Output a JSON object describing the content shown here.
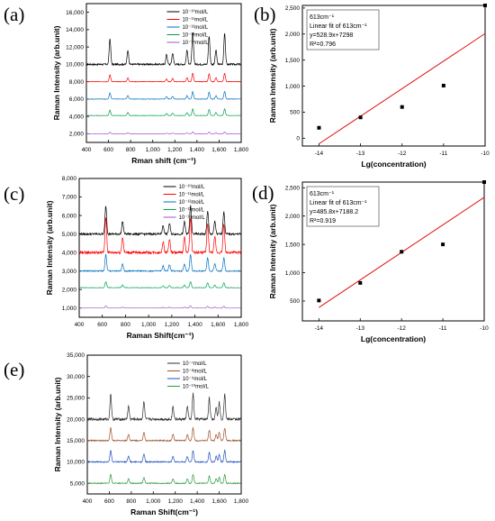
{
  "panels": {
    "a": {
      "label": "(a)"
    },
    "b": {
      "label": "(b)"
    },
    "c": {
      "label": "(c)"
    },
    "d": {
      "label": "(d)"
    },
    "e": {
      "label": "(e)"
    }
  },
  "chart_data": [
    {
      "id": "a",
      "type": "line",
      "xlabel": "Rman shift (cm⁻¹)",
      "ylabel": "Raman Intensity (arb.unit)",
      "xlim": [
        400,
        1800
      ],
      "ylim": [
        1000,
        17000
      ],
      "xticks": [
        400,
        600,
        800,
        1000,
        1200,
        1400,
        1600,
        1800
      ],
      "xtick_labels": [
        "400",
        "600",
        "800",
        "1,000",
        "1,200",
        "1,400",
        "1,600",
        "1,800"
      ],
      "yticks": [
        2000,
        4000,
        6000,
        8000,
        10000,
        12000,
        14000,
        16000
      ],
      "ytick_labels": [
        "2,000",
        "4,000",
        "6,000",
        "8,000",
        "10,000",
        "12,000",
        "14,000",
        "16,000"
      ],
      "legend_position": "top-right",
      "peaks": [
        [
          613,
          9
        ],
        [
          775,
          5
        ],
        [
          1125,
          3.5
        ],
        [
          1180,
          4
        ],
        [
          1310,
          5
        ],
        [
          1362,
          11
        ],
        [
          1510,
          10
        ],
        [
          1572,
          5
        ],
        [
          1650,
          11
        ]
      ],
      "series": [
        {
          "name": "10⁻¹⁰mol/L",
          "color": "#000000",
          "baseline": 10000,
          "scale": 330
        },
        {
          "name": "10⁻¹¹mol/L",
          "color": "#ff0000",
          "baseline": 8000,
          "scale": 90
        },
        {
          "name": "10⁻¹²mol/L",
          "color": "#0070c0",
          "baseline": 6000,
          "scale": 80
        },
        {
          "name": "10⁻¹³mol/L",
          "color": "#00a050",
          "baseline": 4100,
          "scale": 70
        },
        {
          "name": "10⁻¹⁴mol/L",
          "color": "#a050d0",
          "baseline": 2000,
          "scale": 20
        }
      ]
    },
    {
      "id": "b",
      "type": "scatter",
      "xlabel": "Lg(concentration)",
      "ylabel": "Raman Intensity (arb.unit)",
      "xlim": [
        -14.4,
        -10
      ],
      "ylim": [
        -150,
        2550
      ],
      "xticks": [
        -14,
        -13,
        -12,
        -11,
        -10
      ],
      "xtick_labels": [
        "-14",
        "-13",
        "-12",
        "-11",
        "-10"
      ],
      "yticks": [
        0,
        500,
        1000,
        1500,
        2000,
        2500
      ],
      "ytick_labels": [
        "0",
        "500",
        "1,000",
        "1,500",
        "2,000",
        "2,500"
      ],
      "x": [
        -14,
        -13,
        -12,
        -11,
        -10
      ],
      "y": [
        200,
        400,
        600,
        1010,
        2550
      ],
      "fit": {
        "slope": 528.9,
        "intercept": 7298
      },
      "annotation": [
        "613cm⁻¹",
        "Linear fit of 613cm⁻¹",
        "y=528.9x+7298",
        "R²=0.796"
      ]
    },
    {
      "id": "c",
      "type": "line",
      "xlabel": "Raman Shift(cm⁻¹)",
      "ylabel": "Raman Intensity (arb.unit)",
      "xlim": [
        400,
        1800
      ],
      "ylim": [
        500,
        8000
      ],
      "xticks": [
        400,
        600,
        800,
        1000,
        1200,
        1400,
        1600,
        1800
      ],
      "xtick_labels": [
        "400",
        "600",
        "800",
        "1,000",
        "1,200",
        "1,400",
        "1,600",
        "1,800"
      ],
      "yticks": [
        1000,
        2000,
        3000,
        4000,
        5000,
        6000,
        7000,
        8000
      ],
      "ytick_labels": [
        "1,000",
        "2,000",
        "3,000",
        "4,000",
        "5,000",
        "6,000",
        "7,000",
        "8,000"
      ],
      "legend_position": "top-right",
      "peaks": [
        [
          630,
          8
        ],
        [
          775,
          3.5
        ],
        [
          1125,
          2.5
        ],
        [
          1180,
          3
        ],
        [
          1310,
          3.5
        ],
        [
          1362,
          8
        ],
        [
          1510,
          6.5
        ],
        [
          1572,
          3.5
        ],
        [
          1650,
          6.5
        ]
      ],
      "series": [
        {
          "name": "10⁻¹⁰mol/L",
          "color": "#000000",
          "baseline": 5000,
          "scale": 190
        },
        {
          "name": "10⁻¹¹mol/L",
          "color": "#ff0000",
          "baseline": 4000,
          "scale": 240
        },
        {
          "name": "10⁻¹²mol/L",
          "color": "#0070c0",
          "baseline": 3000,
          "scale": 110
        },
        {
          "name": "10⁻¹³mol/L",
          "color": "#00a050",
          "baseline": 2100,
          "scale": 40
        },
        {
          "name": "10⁻¹⁴mol/L",
          "color": "#a050d0",
          "baseline": 1000,
          "scale": 15
        }
      ]
    },
    {
      "id": "d",
      "type": "scatter",
      "xlabel": "Lg(concentration)",
      "ylabel": "Raman Intensity (arb.unit)",
      "xlim": [
        -14.4,
        -10
      ],
      "ylim": [
        150,
        2600
      ],
      "xticks": [
        -14,
        -13,
        -12,
        -11,
        -10
      ],
      "xtick_labels": [
        "-14",
        "-13",
        "-12",
        "-11",
        "-10"
      ],
      "yticks": [
        500,
        1000,
        1500,
        2000,
        2500
      ],
      "ytick_labels": [
        "500",
        "1,000",
        "1,500",
        "2,000",
        "2,500"
      ],
      "x": [
        -14,
        -13,
        -12,
        -11,
        -10
      ],
      "y": [
        510,
        820,
        1370,
        1500,
        2600
      ],
      "fit": {
        "slope": 485.8,
        "intercept": 7188.2
      },
      "annotation": [
        "613cm⁻¹",
        "Linear fit of 613cm⁻¹",
        "y=485.8x+7188.2",
        "R²=0.919"
      ]
    },
    {
      "id": "e",
      "type": "line",
      "xlabel": "Raman Shift(cm⁻¹)",
      "ylabel": "Raman Intensity (arb.unit)",
      "xlim": [
        400,
        1800
      ],
      "ylim": [
        2500,
        35000
      ],
      "xticks": [
        400,
        600,
        800,
        1000,
        1200,
        1400,
        1600,
        1800
      ],
      "xtick_labels": [
        "400",
        "600",
        "800",
        "1,000",
        "1,200",
        "1,400",
        "1,600",
        "1,800"
      ],
      "yticks": [
        5000,
        10000,
        15000,
        20000,
        25000,
        30000,
        35000
      ],
      "ytick_labels": [
        "5,000",
        "10,000",
        "15,000",
        "20,000",
        "25,000",
        "30,000",
        "35,000"
      ],
      "legend_position": "top-right",
      "peaks": [
        [
          613,
          6
        ],
        [
          775,
          3
        ],
        [
          915,
          4
        ],
        [
          1180,
          3
        ],
        [
          1310,
          3
        ],
        [
          1362,
          6
        ],
        [
          1510,
          5
        ],
        [
          1572,
          3
        ],
        [
          1600,
          4
        ],
        [
          1650,
          6
        ]
      ],
      "series": [
        {
          "name": "10⁻⁷mol/L",
          "color": "#303030",
          "baseline": 20000,
          "scale": 1000
        },
        {
          "name": "10⁻⁸mol/L",
          "color": "#a0502a",
          "baseline": 15000,
          "scale": 500
        },
        {
          "name": "10⁻⁹mol/L",
          "color": "#2050c0",
          "baseline": 10000,
          "scale": 450
        },
        {
          "name": "10⁻¹⁰mol/L",
          "color": "#2a9a40",
          "baseline": 5000,
          "scale": 350
        }
      ]
    }
  ]
}
